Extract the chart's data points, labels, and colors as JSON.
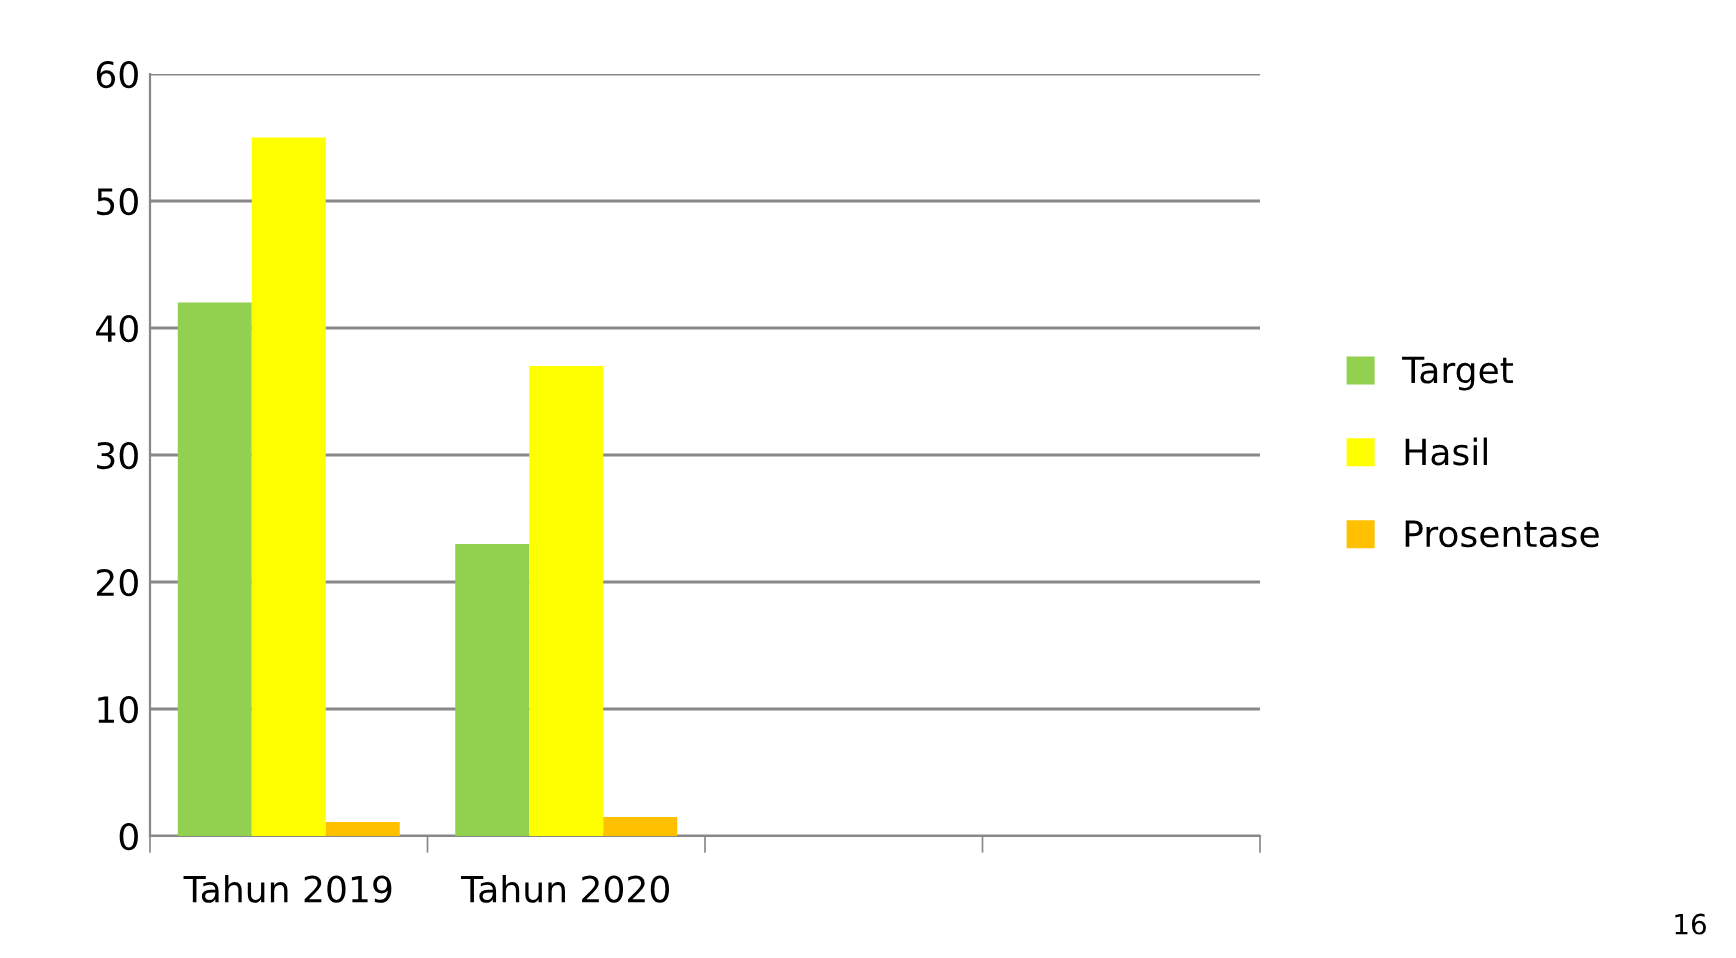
{
  "chart_data": {
    "type": "bar",
    "categories": [
      "Tahun 2019",
      "Tahun 2020",
      null,
      null
    ],
    "series": [
      {
        "name": "Target",
        "color": "#92d050",
        "values": [
          42,
          23,
          null,
          null
        ]
      },
      {
        "name": "Hasil",
        "color": "#ffff00",
        "values": [
          55,
          37,
          null,
          null
        ]
      },
      {
        "name": "Prosentase",
        "color": "#ffc000",
        "values": [
          1.1,
          1.5,
          null,
          null
        ]
      }
    ],
    "ylim": [
      0,
      60
    ],
    "yticks": [
      0,
      10,
      20,
      30,
      40,
      50,
      60
    ],
    "grid": "y",
    "legend": "right",
    "annotations": [
      "16"
    ]
  }
}
